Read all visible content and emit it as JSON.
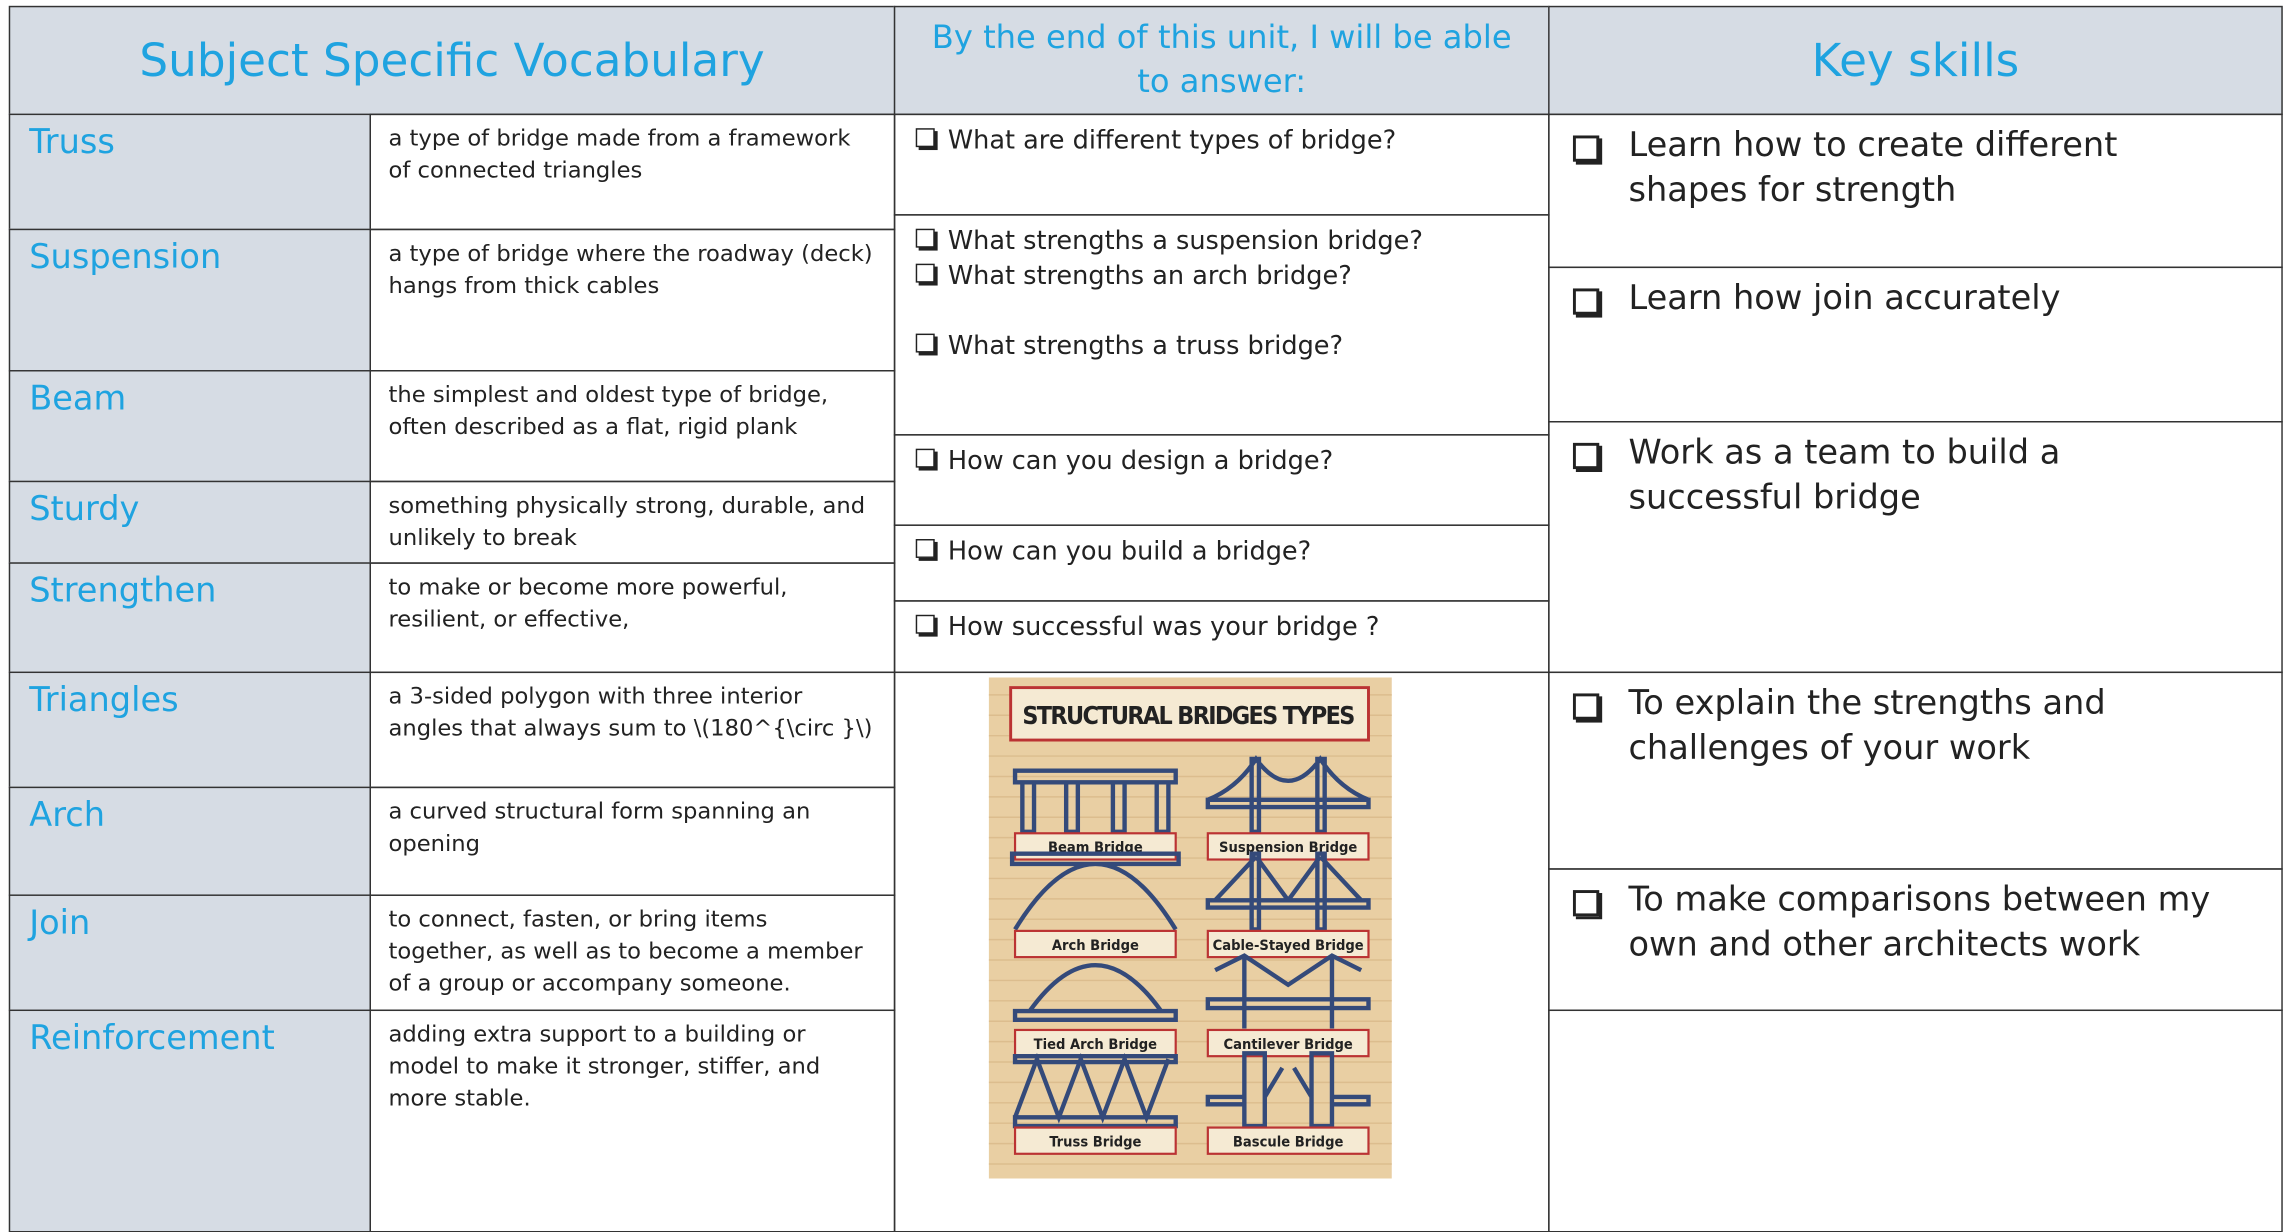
{
  "header": {
    "vocabulary": "Subject Specific Vocabulary",
    "questions": "By the end of this unit, I will be able to answer:",
    "skills": "Key skills"
  },
  "vocabulary": [
    {
      "term": "Truss",
      "definition": "a type of bridge made from a framework of connected triangles"
    },
    {
      "term": "Suspension",
      "definition": "a type of bridge where the roadway (deck) hangs from thick cables"
    },
    {
      "term": "Beam",
      "definition": "the simplest and oldest type of bridge, often described as a flat, rigid plank"
    },
    {
      "term": "Sturdy",
      "definition": "something physically strong, durable, and unlikely to break"
    },
    {
      "term": "Strengthen",
      "definition": "to make or become more powerful, resilient, or effective,"
    },
    {
      "term": "Triangles",
      "definition": "a 3-sided polygon with three interior angles that always sum to \\(180^{\\circ }\\)"
    },
    {
      "term": "Arch",
      "definition": "a curved structural form spanning an opening"
    },
    {
      "term": "Join",
      "definition": "to connect, fasten, or bring items together, as well as to become a member of a group or accompany someone."
    },
    {
      "term": "Reinforcement",
      "definition": "adding extra support to a building or model to make it stronger, stiffer, and more stable."
    }
  ],
  "questions": [
    [
      "What are different types of bridge?"
    ],
    [
      "What strengths a suspension bridge?",
      "What strengths an arch bridge?",
      "What strengths a truss bridge?"
    ],
    [
      "How can you design a bridge?"
    ],
    [
      "How can you build a bridge?"
    ],
    [
      "How successful was your bridge ?"
    ]
  ],
  "skills": [
    "Learn how to create different shapes for strength",
    "Learn how join accurately",
    "Work as a team to build a successful bridge",
    "To explain the strengths and challenges of your work",
    "To make comparisons between my own and other architects work"
  ],
  "image": {
    "title": "STRUCTURAL BRIDGES TYPES",
    "labels": [
      "Beam Bridge",
      "Suspension Bridge",
      "Arch Bridge",
      "Cable-Stayed Bridge",
      "Tied Arch Bridge",
      "Cantilever Bridge",
      "Truss Bridge",
      "Bascule Bridge"
    ]
  }
}
